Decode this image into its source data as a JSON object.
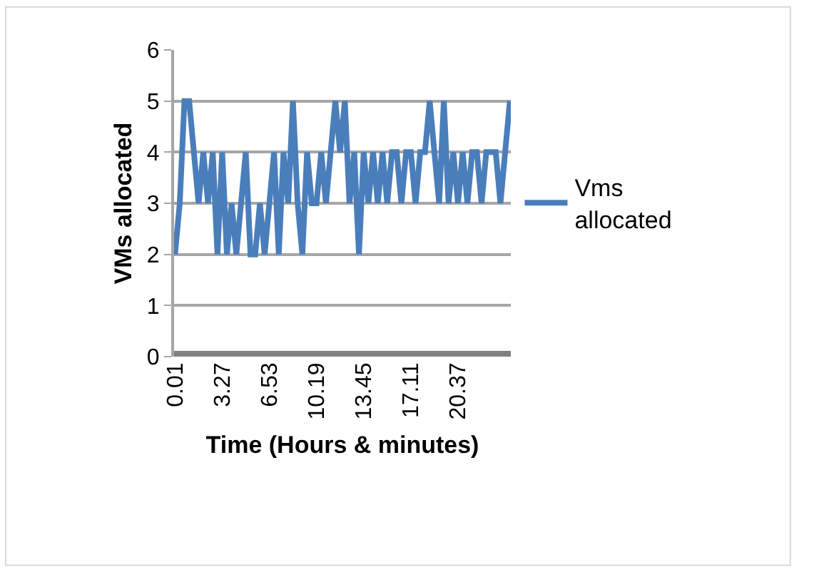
{
  "chart_data": {
    "type": "line",
    "xlabel": "Time (Hours & minutes)",
    "ylabel": "VMs allocated",
    "categories": [
      "0.01",
      null,
      null,
      null,
      null,
      null,
      null,
      null,
      null,
      null,
      "3.27",
      null,
      null,
      null,
      null,
      null,
      null,
      null,
      null,
      null,
      "6.53",
      null,
      null,
      null,
      null,
      null,
      null,
      null,
      null,
      null,
      "10.19",
      null,
      null,
      null,
      null,
      null,
      null,
      null,
      null,
      null,
      "13.45",
      null,
      null,
      null,
      null,
      null,
      null,
      null,
      null,
      null,
      "17.11",
      null,
      null,
      null,
      null,
      null,
      null,
      null,
      null,
      null,
      "20.37",
      null,
      null,
      null,
      null,
      null,
      null,
      null,
      null,
      null,
      null,
      null
    ],
    "series": [
      {
        "name": "Vms allocated",
        "color": "#4a7ebb",
        "values": [
          2,
          3,
          5,
          5,
          4,
          3,
          4,
          3,
          4,
          2,
          4,
          2,
          3,
          2,
          3,
          4,
          2,
          2,
          3,
          2,
          3,
          4,
          2,
          4,
          3,
          5,
          3,
          2,
          4,
          3,
          3,
          4,
          3,
          4,
          5,
          4,
          5,
          3,
          4,
          2,
          4,
          3,
          4,
          3,
          4,
          3,
          4,
          4,
          3,
          4,
          4,
          3,
          4,
          4,
          5,
          4,
          3,
          5,
          3,
          4,
          3,
          4,
          3,
          4,
          4,
          3,
          4,
          4,
          4,
          3,
          4,
          5
        ]
      }
    ],
    "ylim": [
      0,
      6
    ],
    "yticks": [
      0,
      1,
      2,
      3,
      4,
      5,
      6
    ],
    "grid": "y",
    "legend": "right",
    "marker": "none",
    "line_style": "solid"
  }
}
